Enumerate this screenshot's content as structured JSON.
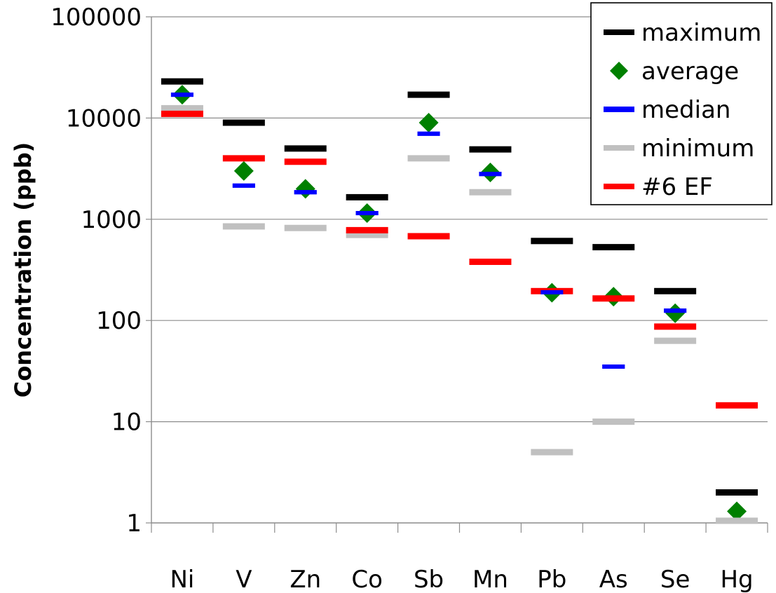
{
  "chart_data": {
    "type": "scatter",
    "ylabel": "Concentration (ppb)",
    "yscale": "log",
    "ylim": [
      1,
      100000
    ],
    "yticks": [
      "1",
      "10",
      "100",
      "1000",
      "10000",
      "100000"
    ],
    "grid": true,
    "legend_position": "top-right",
    "categories": [
      "Ni",
      "V",
      "Zn",
      "Co",
      "Sb",
      "Mn",
      "Pb",
      "As",
      "Se",
      "Hg"
    ],
    "series": [
      {
        "name": "maximum",
        "marker": "dash",
        "color": "#000000",
        "values": [
          23000,
          9000,
          5000,
          1650,
          17000,
          4900,
          610,
          530,
          195,
          2.0
        ]
      },
      {
        "name": "average",
        "marker": "diamond",
        "color": "#008000",
        "values": [
          17000,
          3000,
          2000,
          1150,
          9000,
          2900,
          188,
          172,
          118,
          1.3
        ]
      },
      {
        "name": "median",
        "marker": "dash",
        "color": "#0000ff",
        "values": [
          17000,
          2150,
          1850,
          1150,
          7000,
          2800,
          190,
          35,
          125,
          null
        ]
      },
      {
        "name": "minimum",
        "marker": "dash",
        "color": "#c0c0c0",
        "values": [
          12500,
          850,
          820,
          700,
          4000,
          1850,
          5,
          10,
          63,
          1.05
        ]
      },
      {
        "name": "#6 EF",
        "marker": "dash",
        "color": "#ff0000",
        "values": [
          11000,
          4000,
          3700,
          780,
          680,
          380,
          195,
          165,
          87,
          14.5
        ]
      }
    ]
  }
}
